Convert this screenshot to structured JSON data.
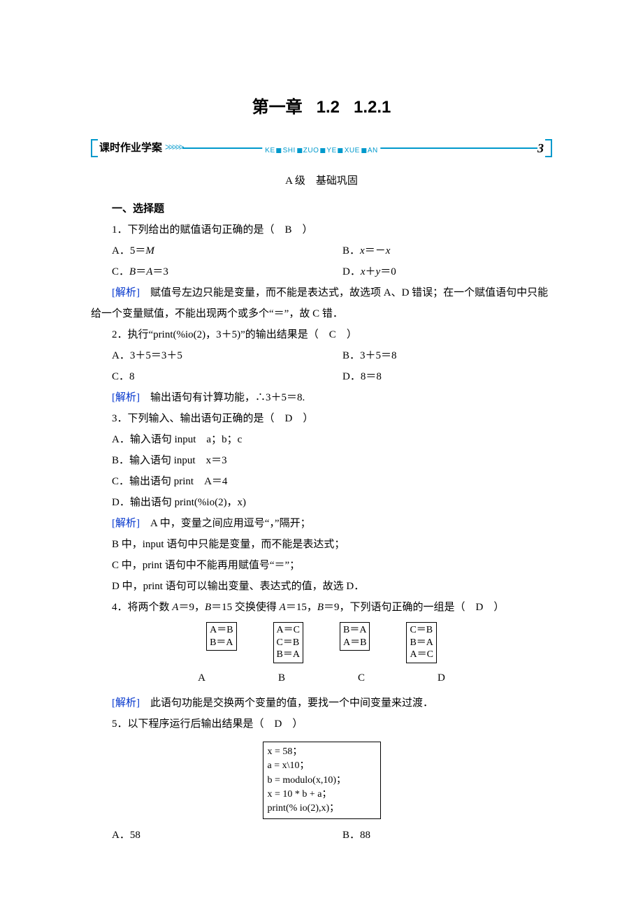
{
  "title": {
    "chapter": "第一章",
    "sec1": "1.2",
    "sec2": "1.2.1"
  },
  "banner": {
    "label": "课时作业学案",
    "pinyin": [
      "KE",
      "SHI",
      "ZUO",
      "YE",
      "XUE",
      "AN"
    ],
    "number": "3"
  },
  "level": {
    "grade": "A 级",
    "name": "基础巩固"
  },
  "section1": "一、选择题",
  "q1": {
    "stem_pre": "1．下列给出的赋值语句正确的是（　",
    "ans": "B",
    "stem_post": "　）",
    "A_pre": "A．5＝",
    "A_it": "M",
    "B_pre": "B．",
    "B_it1": "x",
    "B_mid": "＝－",
    "B_it2": "x",
    "C_pre": "C．",
    "C_it1": "B",
    "C_mid1": "＝",
    "C_it2": "A",
    "C_mid2": "＝3",
    "D_pre": "D．",
    "D_it1": "x",
    "D_mid1": "＋",
    "D_it2": "y",
    "D_mid2": "＝0",
    "analysis_label": "[解析]",
    "analysis": "　赋值号左边只能是变量，而不能是表达式，故选项 A、D 错误；在一个赋值语句中只能给一个变量赋值，不能出现两个或多个“＝”，故 C 错．"
  },
  "q2": {
    "stem_pre": "2．执行“print(%io(2)，3＋5)”的输出结果是（　",
    "ans": "C",
    "stem_post": "　）",
    "A": "A．3＋5＝3＋5",
    "B": "B．3＋5＝8",
    "C": "C．8",
    "D": "D．8＝8",
    "analysis_label": "[解析]",
    "analysis": "　输出语句有计算功能，∴3＋5＝8."
  },
  "q3": {
    "stem_pre": "3．下列输入、输出语句正确的是（　",
    "ans": "D",
    "stem_post": "　）",
    "A": "A．输入语句 input　a；b；c",
    "B": "B．输入语句 input　x＝3",
    "C": "C．输出语句 print　A＝4",
    "D": "D．输出语句 print(%io(2)，x)",
    "analysis_label": "[解析]",
    "a1": "　A 中，变量之间应用逗号“，”隔开；",
    "a2": "B 中，input 语句中只能是变量，而不能是表达式；",
    "a3": "C 中，print 语句中不能再用赋值号“＝”；",
    "a4": "D 中，print 语句可以输出变量、表达式的值，故选 D．"
  },
  "q4": {
    "stem_p1": "4．将两个数 ",
    "it_A1": "A",
    "eq1": "＝9，",
    "it_B1": "B",
    "eq2": "＝15 交换使得 ",
    "it_A2": "A",
    "eq3": "＝15，",
    "it_B2": "B",
    "eq4": "＝9，下列语句正确的一组是（　",
    "ans": "D",
    "stem_post": "　）",
    "colA": "A＝B\nB＝A",
    "colB": "A＝C\nC＝B\nB＝A",
    "colC": "B＝A\nA＝B",
    "colD": "C＝B\nB＝A\nA＝C",
    "labA": "A",
    "labB": "B",
    "labC": "C",
    "labD": "D",
    "analysis_label": "[解析]",
    "analysis": "　此语句功能是交换两个变量的值，要找一个中间变量来过渡．"
  },
  "q5": {
    "stem_pre": "5．以下程序运行后输出结果是（　",
    "ans": "D",
    "stem_post": "　）",
    "code": "x = 58；\na = x\\10；\nb = modulo(x,10)；\nx = 10 * b + a；\nprint(% io(2),x)；",
    "A": "A．58",
    "B": "B．88"
  },
  "colors": {
    "accent": "#0099cc",
    "analysis": "#0033cc",
    "text": "#000000",
    "background": "#ffffff"
  }
}
